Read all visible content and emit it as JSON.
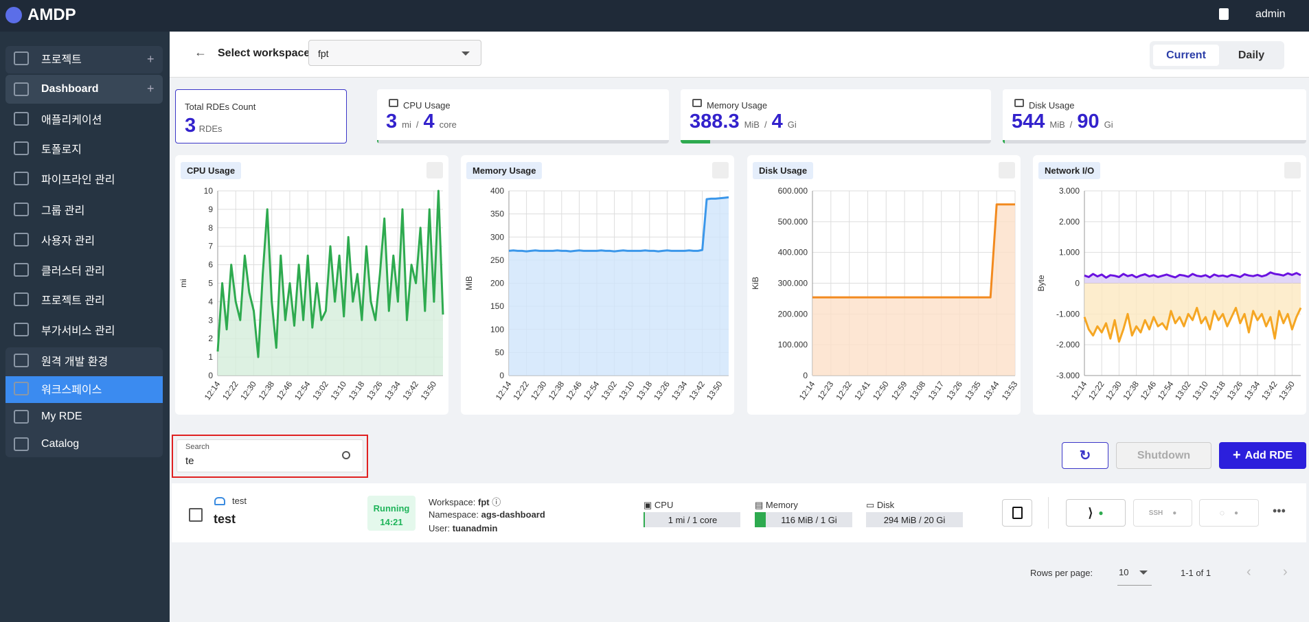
{
  "header": {
    "brand": "AMDP",
    "user": "admin"
  },
  "sidebar": [
    "프로젝트",
    "Dashboard",
    "애플리케이션",
    "토폴로지",
    "파이프라인 관리",
    "그룹 관리",
    "사용자 관리",
    "클러스터 관리",
    "프로젝트 관리",
    "부가서비스 관리",
    "원격 개발 환경",
    "워크스페이스",
    "My RDE",
    "Catalog"
  ],
  "toolbar": {
    "label": "Select workspace",
    "workspace": "fpt",
    "tabs": [
      "Current",
      "Daily"
    ]
  },
  "stats": [
    {
      "title": "Total RDEs Count",
      "value": 3,
      "unit": "RDEs"
    },
    {
      "title": "CPU Usage",
      "used": 3,
      "used_unit": "mi",
      "sep": "/",
      "total": 4,
      "total_unit": "core"
    },
    {
      "title": "Memory Usage",
      "used": 388.3,
      "used_unit": "MiB",
      "sep": "/",
      "total": 4,
      "total_unit": "Gi"
    },
    {
      "title": "Disk Usage",
      "used": 544,
      "used_unit": "MiB",
      "sep": "/",
      "total": 90,
      "total_unit": "Gi"
    }
  ],
  "chart_data": [
    {
      "type": "area",
      "title": "CPU Usage",
      "y_label": "mi",
      "categories": [
        "12:14",
        null,
        null,
        null,
        "12:22",
        null,
        null,
        null,
        "12:30",
        null,
        null,
        null,
        "12:38",
        null,
        null,
        null,
        "12:46",
        null,
        null,
        null,
        "12:54",
        null,
        null,
        null,
        "13:02",
        null,
        null,
        null,
        "13:10",
        null,
        null,
        null,
        "13:18",
        null,
        null,
        null,
        "13:26",
        null,
        null,
        null,
        "13:34",
        null,
        null,
        null,
        "13:42",
        null,
        null,
        null,
        "13:50",
        null,
        null
      ],
      "ylim": [
        0,
        10
      ],
      "yticks": [
        0,
        1,
        2,
        3,
        4,
        5,
        6,
        7,
        8,
        9,
        10
      ],
      "grid": true,
      "series": [
        {
          "color": "#2eaa4f",
          "fill": "#d5eedb",
          "values": [
            1.3,
            5,
            2.5,
            6,
            4,
            3,
            6.5,
            4.5,
            3.5,
            1,
            5.5,
            9,
            4,
            1.5,
            6.5,
            3,
            5,
            2.7,
            6,
            3,
            6.5,
            2.6,
            5,
            3,
            3.5,
            7,
            4,
            6.5,
            3.2,
            7.5,
            4,
            5.5,
            3,
            7,
            4,
            3,
            5.5,
            8.5,
            3.5,
            6.5,
            4,
            9,
            3,
            6,
            5,
            8,
            3.5,
            9,
            4,
            10,
            3.3
          ]
        }
      ]
    },
    {
      "type": "area",
      "title": "Memory Usage",
      "y_label": "MiB",
      "categories": [
        "12:14",
        null,
        null,
        null,
        "12:22",
        null,
        null,
        null,
        "12:30",
        null,
        null,
        null,
        "12:38",
        null,
        null,
        null,
        "12:46",
        null,
        null,
        null,
        "12:54",
        null,
        null,
        null,
        "13:02",
        null,
        null,
        null,
        "13:10",
        null,
        null,
        null,
        "13:18",
        null,
        null,
        null,
        "13:26",
        null,
        null,
        null,
        "13:34",
        null,
        null,
        null,
        "13:42",
        null,
        null,
        null,
        "13:50",
        null,
        null
      ],
      "ylim": [
        0,
        400
      ],
      "yticks": [
        0,
        50,
        100,
        150,
        200,
        250,
        300,
        350,
        400
      ],
      "grid": true,
      "series": [
        {
          "color": "#3b97ea",
          "fill": "#cfe5fb",
          "values": [
            270,
            271,
            270,
            270,
            269,
            270,
            271,
            270,
            270,
            270,
            270,
            271,
            270,
            270,
            269,
            270,
            271,
            270,
            270,
            270,
            270,
            271,
            270,
            270,
            269,
            270,
            271,
            270,
            270,
            270,
            270,
            271,
            270,
            270,
            269,
            270,
            271,
            270,
            270,
            270,
            270,
            271,
            270,
            270,
            272,
            382,
            383,
            383,
            384,
            385,
            386
          ]
        }
      ]
    },
    {
      "type": "area",
      "title": "Disk Usage",
      "y_label": "KiB",
      "categories": [
        "12:14",
        null,
        null,
        "12:23",
        null,
        null,
        "12:32",
        null,
        null,
        "12:41",
        null,
        null,
        "12:50",
        null,
        null,
        "12:59",
        null,
        null,
        "13:08",
        null,
        null,
        "13:17",
        null,
        null,
        "13:26",
        null,
        null,
        "13:35",
        null,
        null,
        "13:44",
        null,
        null,
        "13:53"
      ],
      "ylim": [
        0,
        600000
      ],
      "yticks": [
        0,
        {
          "value": 100000,
          "label": "100.000"
        },
        {
          "value": 200000,
          "label": "200.000"
        },
        {
          "value": 300000,
          "label": "300.000"
        },
        {
          "value": 400000,
          "label": "400.000"
        },
        {
          "value": 500000,
          "label": "500.000"
        },
        {
          "value": 600000,
          "label": "600.000"
        }
      ],
      "grid": true,
      "series": [
        {
          "color": "#f28a1f",
          "fill": "#fde0c8",
          "values": [
            254000,
            254000,
            254000,
            254000,
            254000,
            254000,
            254000,
            254000,
            254000,
            254000,
            254000,
            254000,
            254000,
            254000,
            254000,
            254000,
            254000,
            254000,
            254000,
            254000,
            254000,
            254000,
            254000,
            254000,
            254000,
            254000,
            254000,
            254000,
            254000,
            254000,
            556000,
            556000,
            556000,
            556000
          ]
        }
      ]
    },
    {
      "type": "area",
      "title": "Network I/O",
      "y_label": "Byte",
      "categories": [
        "12:14",
        null,
        null,
        null,
        "12:22",
        null,
        null,
        null,
        "12:30",
        null,
        null,
        null,
        "12:38",
        null,
        null,
        null,
        "12:46",
        null,
        null,
        null,
        "12:54",
        null,
        null,
        null,
        "13:02",
        null,
        null,
        null,
        "13:10",
        null,
        null,
        null,
        "13:18",
        null,
        null,
        null,
        "13:26",
        null,
        null,
        null,
        "13:34",
        null,
        null,
        null,
        "13:42",
        null,
        null,
        null,
        "13:50",
        null,
        null
      ],
      "ylim": [
        -3000,
        3000
      ],
      "yticks": [
        {
          "value": -3000,
          "label": "-3.000"
        },
        {
          "value": -2000,
          "label": "-2.000"
        },
        {
          "value": -1000,
          "label": "-1.000"
        },
        0,
        {
          "value": 1000,
          "label": "1.000"
        },
        {
          "value": 2000,
          "label": "2.000"
        },
        {
          "value": 3000,
          "label": "3.000"
        }
      ],
      "grid": true,
      "series": [
        {
          "color": "#6a11e0",
          "fill": "#d9ccf5",
          "values": [
            250,
            200,
            300,
            220,
            280,
            180,
            260,
            240,
            200,
            300,
            230,
            270,
            190,
            250,
            290,
            220,
            260,
            200,
            240,
            280,
            230,
            190,
            270,
            250,
            210,
            300,
            240,
            220,
            260,
            190,
            280,
            230,
            250,
            210,
            270,
            240,
            200,
            290,
            250,
            230,
            270,
            220,
            260,
            350,
            300,
            280,
            250,
            320,
            270,
            330,
            260
          ]
        },
        {
          "color": "#f5a623",
          "fill": "#fde8c0",
          "values": [
            -1100,
            -1500,
            -1700,
            -1400,
            -1600,
            -1300,
            -1800,
            -1200,
            -1900,
            -1500,
            -1000,
            -1700,
            -1400,
            -1600,
            -1200,
            -1500,
            -1100,
            -1400,
            -1300,
            -1500,
            -900,
            -1300,
            -1100,
            -1400,
            -1000,
            -1200,
            -800,
            -1300,
            -1100,
            -1500,
            -900,
            -1200,
            -1000,
            -1400,
            -1100,
            -800,
            -1300,
            -1000,
            -1600,
            -900,
            -1200,
            -1000,
            -1400,
            -1100,
            -1800,
            -900,
            -1300,
            -1000,
            -1500,
            -1100,
            -800
          ]
        }
      ]
    }
  ],
  "search": {
    "label": "Search",
    "value": "te"
  },
  "actions": [
    "Shutdown",
    "Add RDE"
  ],
  "rdes": [
    {
      "name": "test",
      "title": "test",
      "status": "Running",
      "time": "14:21",
      "workspace_label": "Workspace:",
      "workspace": "fpt",
      "namespace_label": "Namespace:",
      "namespace": "ags-dashboard",
      "user_label": "User:",
      "user": "tuanadmin",
      "cpu_label": "CPU",
      "cpu": "1 mi / 1 core",
      "memory_label": "Memory",
      "memory": "116 MiB / 1 Gi",
      "disk_label": "Disk",
      "disk": "294 MiB / 20 Gi",
      "ssh": "SSH"
    }
  ],
  "pagination": {
    "label": "Rows per page:",
    "rows": "10",
    "range": "1-1 of 1"
  }
}
